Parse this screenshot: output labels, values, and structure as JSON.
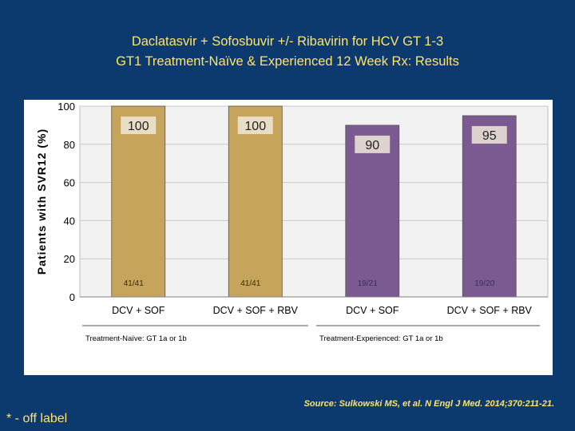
{
  "title_line1": "Daclatasvir + Sofosbuvir +/- Ribavirin for HCV GT 1-3",
  "title_line2": "GT1 Treatment-Naïve & Experienced 12 Week Rx: Results",
  "source": "Source: Sulkowski MS, et al. N Engl J Med. 2014;370:211-21.",
  "footnote": "* - off label",
  "colors": {
    "background": "#0d3a6e",
    "title": "#ffe36a",
    "naive_bar": "#c6a45c",
    "experienced_bar": "#7b5a92"
  },
  "chart_data": {
    "type": "bar",
    "ylabel": "Patients with SVR12 (%)",
    "ylim": [
      0,
      100
    ],
    "yticks": [
      0,
      20,
      40,
      60,
      80,
      100
    ],
    "categories": [
      "DCV + SOF",
      "DCV + SOF + RBV",
      "DCV + SOF",
      "DCV + SOF + RBV"
    ],
    "values": [
      100,
      100,
      90,
      95
    ],
    "value_labels": [
      "100",
      "100",
      "90",
      "95"
    ],
    "counts": [
      "41/41",
      "41/41",
      "19/21",
      "19/20"
    ],
    "groups": [
      {
        "label": "Treatment-Naïve: GT 1a or 1b",
        "bars": [
          0,
          1
        ]
      },
      {
        "label": "Treatment-Experienced: GT 1a or 1b",
        "bars": [
          2,
          3
        ]
      }
    ],
    "bar_colors": [
      "#c6a45c",
      "#c6a45c",
      "#7b5a92",
      "#7b5a92"
    ]
  }
}
